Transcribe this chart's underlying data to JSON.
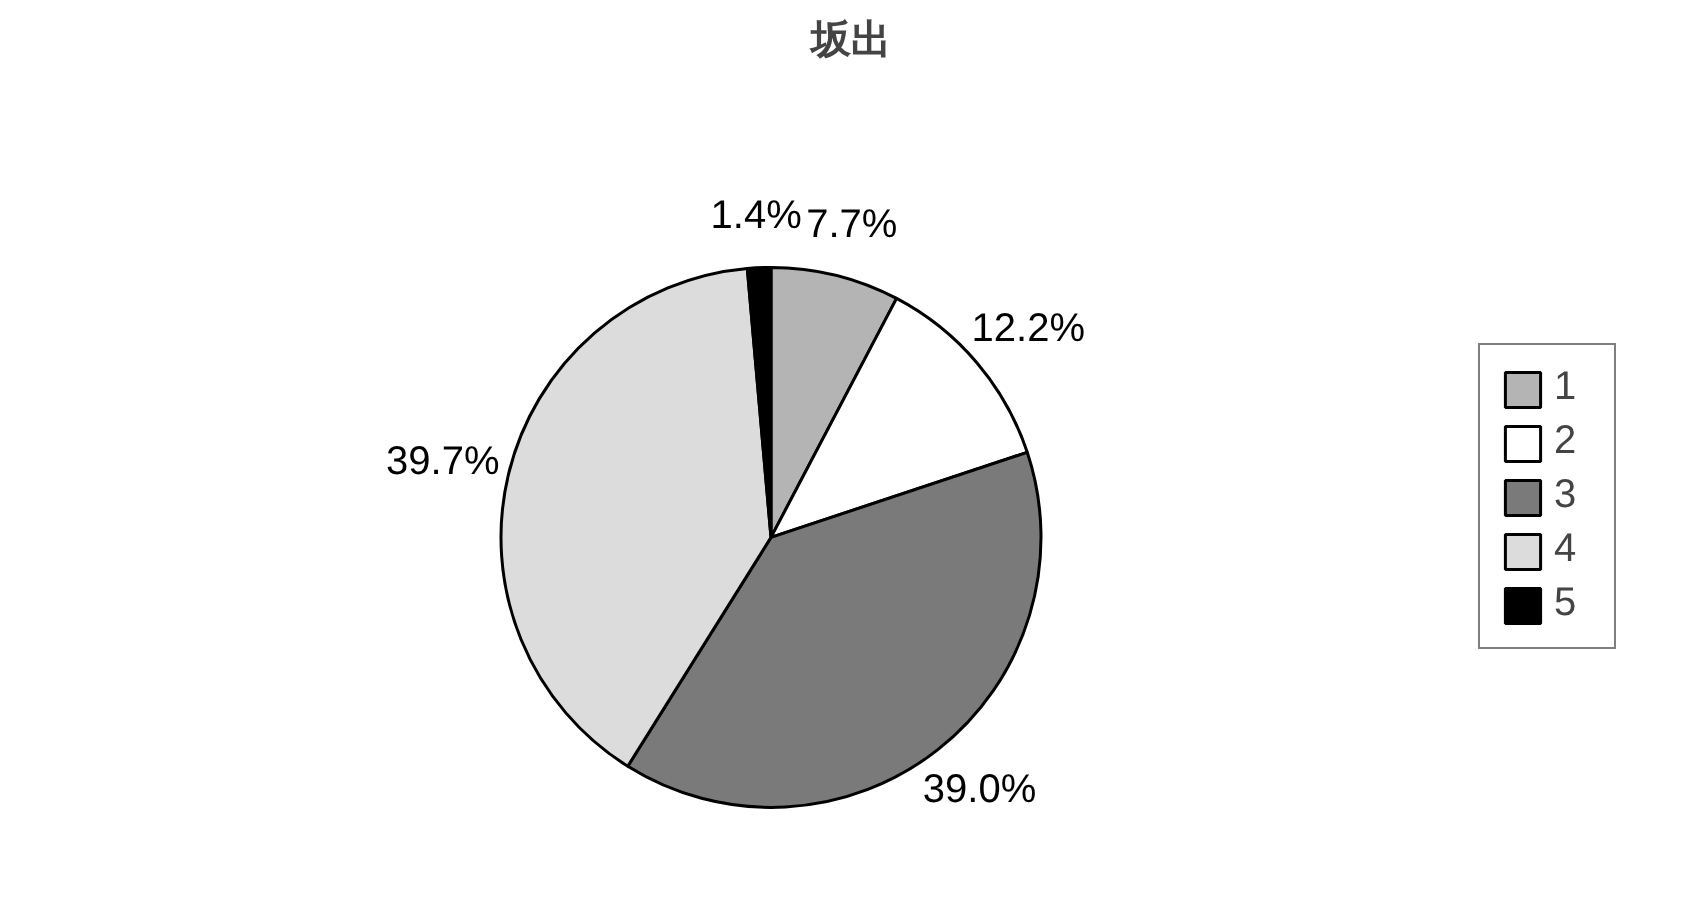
{
  "chart_data": {
    "type": "pie",
    "title": "坂出",
    "categories": [
      "1",
      "2",
      "3",
      "4",
      "5"
    ],
    "values": [
      7.7,
      12.2,
      39.0,
      39.7,
      1.4
    ],
    "value_labels": [
      "7.7%",
      "12.2%",
      "39.0%",
      "39.7%",
      "1.4%"
    ],
    "colors": [
      "#b4b4b4",
      "#ffffff",
      "#7a7a7a",
      "#dcdcdc",
      "#000000"
    ],
    "legend": "right"
  }
}
